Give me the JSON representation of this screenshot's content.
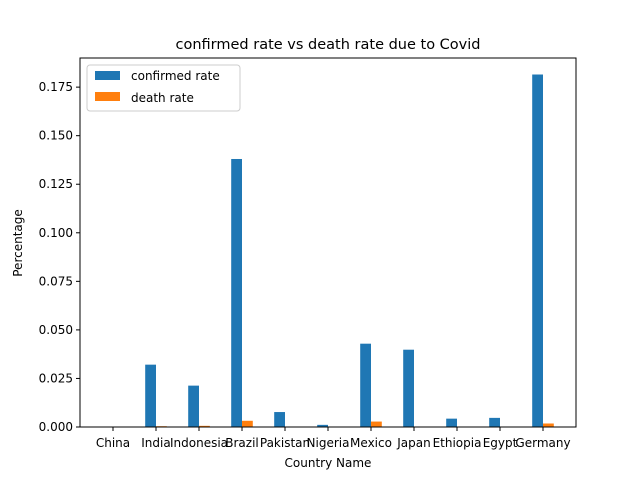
{
  "chart_data": {
    "type": "bar",
    "title": "confirmed rate vs death rate due to Covid",
    "xlabel": "Country Name",
    "ylabel": "Percentage",
    "categories": [
      "China",
      "India",
      "Indonesia",
      "Brazil",
      "Pakistan",
      "Nigeria",
      "Mexico",
      "Japan",
      "Ethiopia",
      "Egypt",
      "Germany"
    ],
    "series": [
      {
        "name": "confirmed rate",
        "color": "#1f77b4",
        "values": [
          0.0001,
          0.0321,
          0.0213,
          0.138,
          0.0077,
          0.0011,
          0.0429,
          0.0398,
          0.0043,
          0.0047,
          0.1815
        ]
      },
      {
        "name": "death rate",
        "color": "#ff7f0e",
        "values": [
          1e-05,
          0.0004,
          0.0006,
          0.0032,
          0.0002,
          2e-05,
          0.0028,
          0.0002,
          0.0001,
          0.0002,
          0.0018
        ]
      }
    ],
    "ylim": [
      0,
      0.19
    ],
    "yticks": [
      "0.000",
      "0.025",
      "0.050",
      "0.075",
      "0.100",
      "0.125",
      "0.150",
      "0.175"
    ],
    "grid": false,
    "legend_position": "top-left"
  }
}
